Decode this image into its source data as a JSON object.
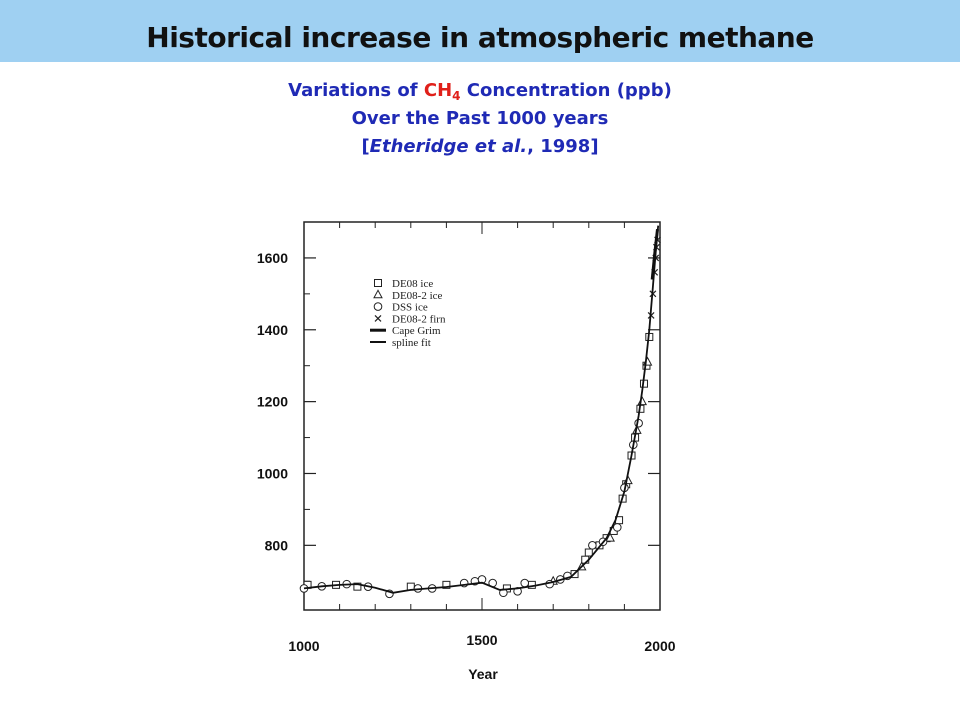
{
  "header": {
    "title": "Historical increase in atmospheric methane"
  },
  "caption": {
    "line1_pre": "Variations of ",
    "line1_formula": "CH",
    "line1_sub": "4",
    "line1_post": " Concentration (ppb)",
    "line2": "Over the Past 1000 years",
    "line3_open": "[",
    "line3_authors": "Etheridge et al.",
    "line3_close": ", 1998]"
  },
  "colors": {
    "header_bg": "#9fd0f2",
    "caption": "#1f2ab5",
    "formula": "#e0201a"
  },
  "chart_data": {
    "type": "scatter",
    "title": "",
    "xlabel": "Year",
    "ylabel": "",
    "xlim": [
      1000,
      2000
    ],
    "ylim": [
      620,
      1700
    ],
    "xticks": [
      1000,
      1500,
      2000
    ],
    "yticks": [
      800,
      1000,
      1200,
      1400,
      1600
    ],
    "grid": false,
    "legend_position": "top-left",
    "legend": [
      "DE08 ice",
      "DE08-2 ice",
      "DSS ice",
      "DE08-2 firn",
      "Cape Grim",
      "spline fit"
    ],
    "series": [
      {
        "name": "DE08 ice",
        "marker": "square",
        "x": [
          1010,
          1090,
          1150,
          1300,
          1400,
          1570,
          1640,
          1760,
          1790,
          1800,
          1830,
          1850,
          1870,
          1885,
          1895,
          1905,
          1920,
          1930,
          1945,
          1955,
          1962,
          1970
        ],
        "y": [
          690,
          690,
          685,
          685,
          690,
          680,
          690,
          720,
          760,
          780,
          800,
          820,
          840,
          870,
          930,
          970,
          1050,
          1100,
          1180,
          1250,
          1300,
          1380
        ]
      },
      {
        "name": "DE08-2 ice",
        "marker": "triangle",
        "x": [
          1700,
          1780,
          1860,
          1910,
          1935,
          1950,
          1965
        ],
        "y": [
          700,
          740,
          820,
          980,
          1120,
          1200,
          1310
        ]
      },
      {
        "name": "DSS ice",
        "marker": "circle",
        "x": [
          1000,
          1050,
          1120,
          1180,
          1240,
          1320,
          1360,
          1450,
          1480,
          1500,
          1530,
          1560,
          1600,
          1620,
          1690,
          1720,
          1740,
          1810,
          1840,
          1880,
          1900,
          1925,
          1940
        ],
        "y": [
          680,
          686,
          692,
          685,
          665,
          680,
          680,
          695,
          700,
          705,
          695,
          668,
          672,
          695,
          692,
          705,
          715,
          800,
          810,
          850,
          960,
          1080,
          1140
        ]
      },
      {
        "name": "DE08-2 firn",
        "marker": "x",
        "x": [
          1975,
          1980,
          1985,
          1988,
          1990,
          1993
        ],
        "y": [
          1440,
          1500,
          1560,
          1600,
          1630,
          1650
        ]
      },
      {
        "name": "Cape Grim",
        "marker": "thick-line",
        "x": [
          1978,
          1985,
          1993
        ],
        "y": [
          1540,
          1610,
          1680
        ]
      },
      {
        "name": "spline fit",
        "marker": "line",
        "x": [
          1000,
          1050,
          1100,
          1150,
          1200,
          1250,
          1300,
          1350,
          1400,
          1450,
          1500,
          1550,
          1600,
          1650,
          1700,
          1750,
          1800,
          1850,
          1875,
          1900,
          1920,
          1940,
          1950,
          1960,
          1970,
          1980,
          1990,
          1995
        ],
        "y": [
          680,
          686,
          690,
          692,
          682,
          668,
          676,
          680,
          684,
          690,
          696,
          676,
          680,
          688,
          698,
          712,
          760,
          820,
          870,
          950,
          1050,
          1160,
          1230,
          1310,
          1400,
          1520,
          1640,
          1690
        ]
      }
    ]
  }
}
